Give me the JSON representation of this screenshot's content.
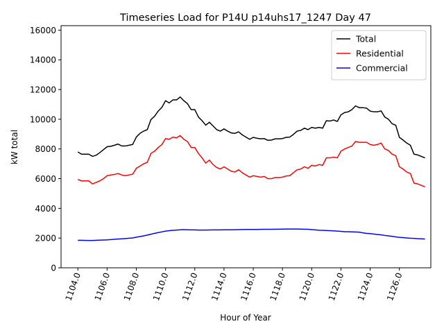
{
  "chart_data": {
    "type": "line",
    "title": "Timeseries Load for P14U p14uhs17_1247  Day 47",
    "xlabel": "Hour of Year",
    "ylabel": "kW total",
    "xlim": [
      1102.85,
      1128.15
    ],
    "ylim": [
      0,
      16300
    ],
    "x_ticks": [
      1104,
      1106,
      1108,
      1110,
      1112,
      1114,
      1116,
      1118,
      1120,
      1122,
      1124,
      1126
    ],
    "x_tick_labels": [
      "1104.0",
      "1106.0",
      "1108.0",
      "1110.0",
      "1112.0",
      "1114.0",
      "1116.0",
      "1118.0",
      "1120.0",
      "1122.0",
      "1124.0",
      "1126.0"
    ],
    "y_ticks": [
      0,
      2000,
      4000,
      6000,
      8000,
      10000,
      12000,
      14000,
      16000
    ],
    "y_tick_labels": [
      "0",
      "2000",
      "4000",
      "6000",
      "8000",
      "10000",
      "12000",
      "14000",
      "16000"
    ],
    "legend_position": "top-right",
    "x_start": 1104.0,
    "x_step": 0.25,
    "series": [
      {
        "name": "Total",
        "color": "#000000",
        "values": [
          7800,
          7650,
          7650,
          7650,
          7500,
          7580,
          7750,
          7950,
          8150,
          8180,
          8250,
          8330,
          8200,
          8200,
          8250,
          8300,
          8800,
          9050,
          9200,
          9300,
          9980,
          10200,
          10550,
          10800,
          11250,
          11100,
          11300,
          11300,
          11500,
          11250,
          11050,
          10650,
          10650,
          10150,
          9900,
          9600,
          9800,
          9550,
          9300,
          9200,
          9350,
          9200,
          9080,
          9050,
          9150,
          8950,
          8800,
          8650,
          8780,
          8720,
          8680,
          8700,
          8580,
          8600,
          8680,
          8680,
          8700,
          8780,
          8800,
          8980,
          9200,
          9250,
          9400,
          9300,
          9450,
          9400,
          9450,
          9400,
          9900,
          9880,
          9950,
          9850,
          10300,
          10450,
          10500,
          10650,
          10900,
          10780,
          10780,
          10750,
          10550,
          10500,
          10500,
          10560,
          10150,
          10000,
          9700,
          9600,
          8780,
          8600,
          8400,
          8250,
          7650,
          7600,
          7500,
          7400
        ]
      },
      {
        "name": "Residential",
        "color": "#ff0000",
        "values": [
          5950,
          5850,
          5850,
          5850,
          5650,
          5750,
          5850,
          6000,
          6200,
          6250,
          6280,
          6350,
          6250,
          6200,
          6250,
          6300,
          6700,
          6850,
          7000,
          7100,
          7700,
          7850,
          8100,
          8300,
          8700,
          8650,
          8800,
          8750,
          8900,
          8650,
          8500,
          8100,
          8100,
          7700,
          7400,
          7050,
          7250,
          6950,
          6750,
          6650,
          6800,
          6650,
          6500,
          6450,
          6600,
          6400,
          6250,
          6100,
          6200,
          6150,
          6100,
          6150,
          6000,
          6000,
          6080,
          6080,
          6100,
          6180,
          6200,
          6400,
          6600,
          6650,
          6800,
          6700,
          6900,
          6850,
          6950,
          6900,
          7400,
          7400,
          7450,
          7400,
          7850,
          8000,
          8100,
          8200,
          8500,
          8450,
          8450,
          8450,
          8300,
          8250,
          8300,
          8400,
          8000,
          7900,
          7650,
          7550,
          6800,
          6650,
          6450,
          6350,
          5700,
          5650,
          5550,
          5450
        ]
      },
      {
        "name": "Commercial",
        "color": "#0000ff",
        "values": [
          1850,
          1850,
          1845,
          1840,
          1840,
          1850,
          1860,
          1870,
          1880,
          1900,
          1920,
          1940,
          1950,
          1970,
          1990,
          2010,
          2060,
          2100,
          2150,
          2200,
          2260,
          2320,
          2370,
          2420,
          2470,
          2500,
          2520,
          2540,
          2560,
          2570,
          2560,
          2550,
          2550,
          2540,
          2540,
          2540,
          2545,
          2550,
          2550,
          2550,
          2555,
          2560,
          2560,
          2565,
          2570,
          2575,
          2580,
          2580,
          2580,
          2580,
          2585,
          2590,
          2590,
          2595,
          2600,
          2600,
          2605,
          2610,
          2610,
          2610,
          2610,
          2605,
          2600,
          2590,
          2570,
          2550,
          2530,
          2520,
          2510,
          2500,
          2490,
          2470,
          2450,
          2430,
          2430,
          2420,
          2410,
          2400,
          2350,
          2320,
          2300,
          2270,
          2240,
          2220,
          2180,
          2150,
          2120,
          2080,
          2050,
          2030,
          2010,
          1990,
          1980,
          1960,
          1950,
          1940
        ]
      }
    ]
  }
}
